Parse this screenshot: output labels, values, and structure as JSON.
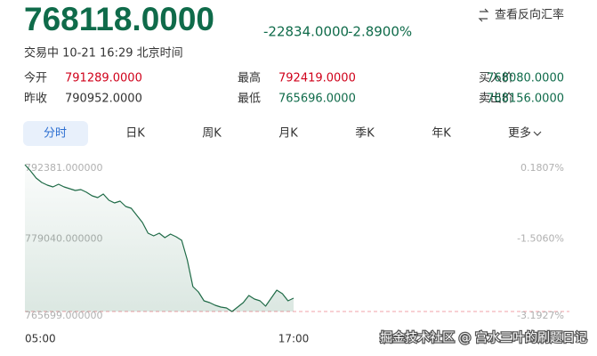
{
  "header": {
    "price": "768118.0000",
    "change": "-22834.0000",
    "change_percent": "-2.8900%",
    "status": "交易中 10-21 16:29 北京时间",
    "reverse_link": "查看反向汇率"
  },
  "stats": [
    {
      "label": "今开",
      "value": "791289.0000"
    },
    {
      "label": "最高",
      "value": "792419.0000"
    },
    {
      "label": "买入价",
      "value": "768080.0000"
    },
    {
      "label": "昨收",
      "value": "790952.0000"
    },
    {
      "label": "最低",
      "value": "765696.0000"
    },
    {
      "label": "卖出价",
      "value": "768156.0000"
    }
  ],
  "tabs": [
    "分时",
    "日K",
    "周K",
    "月K",
    "季K",
    "年K",
    "更多"
  ],
  "chart_data": {
    "type": "line",
    "x": [
      0,
      0.25,
      0.5,
      0.75,
      1,
      1.25,
      1.5,
      1.75,
      2,
      2.25,
      2.5,
      2.75,
      3,
      3.25,
      3.5,
      3.75,
      4,
      4.25,
      4.5,
      4.75,
      5,
      5.25,
      5.5,
      5.75,
      6,
      6.25,
      6.5,
      6.75,
      7,
      7.25,
      7.5,
      7.75,
      8,
      8.25,
      8.5,
      8.75,
      9,
      9.25,
      9.5,
      9.75,
      10,
      10.25,
      10.5,
      10.75,
      11,
      11.25,
      11.5,
      11.75,
      12
    ],
    "xlim": [
      0,
      24
    ],
    "xticks": [
      {
        "value": 0,
        "label": "05:00"
      },
      {
        "value": 12,
        "label": "17:00"
      }
    ],
    "ylim": [
      765699,
      792381
    ],
    "yticks": [
      {
        "value": 792381,
        "label": "792381.000000"
      },
      {
        "value": 779040,
        "label": "779040.000000"
      },
      {
        "value": 765699,
        "label": "765699.000000"
      }
    ],
    "y2lim": [
      -3.1927,
      0.1807
    ],
    "y2ticks": [
      {
        "value": 0.1807,
        "label": "0.1807%"
      },
      {
        "value": -1.506,
        "label": "-1.5060%"
      },
      {
        "value": -3.1927,
        "label": "-3.1927%"
      }
    ],
    "series": [
      {
        "color": "#1f6b47",
        "values": [
          792381,
          791249,
          789955,
          789147,
          788662,
          788339,
          788824,
          788339,
          788015,
          787692,
          787853,
          787368,
          786722,
          786398,
          787045,
          785913,
          785428,
          785752,
          784781,
          784458,
          783165,
          781871,
          779931,
          779446,
          779931,
          779122,
          779769,
          779284,
          778637,
          775080,
          770230,
          769259,
          767642,
          767319,
          766834,
          766511,
          766349,
          765702,
          766511,
          767319,
          768613,
          767966,
          767642,
          766672,
          768127,
          769582,
          768936,
          767642,
          768118
        ]
      }
    ]
  },
  "watermark": "掘金技术社区 @ 宫水三叶的刷题日记"
}
